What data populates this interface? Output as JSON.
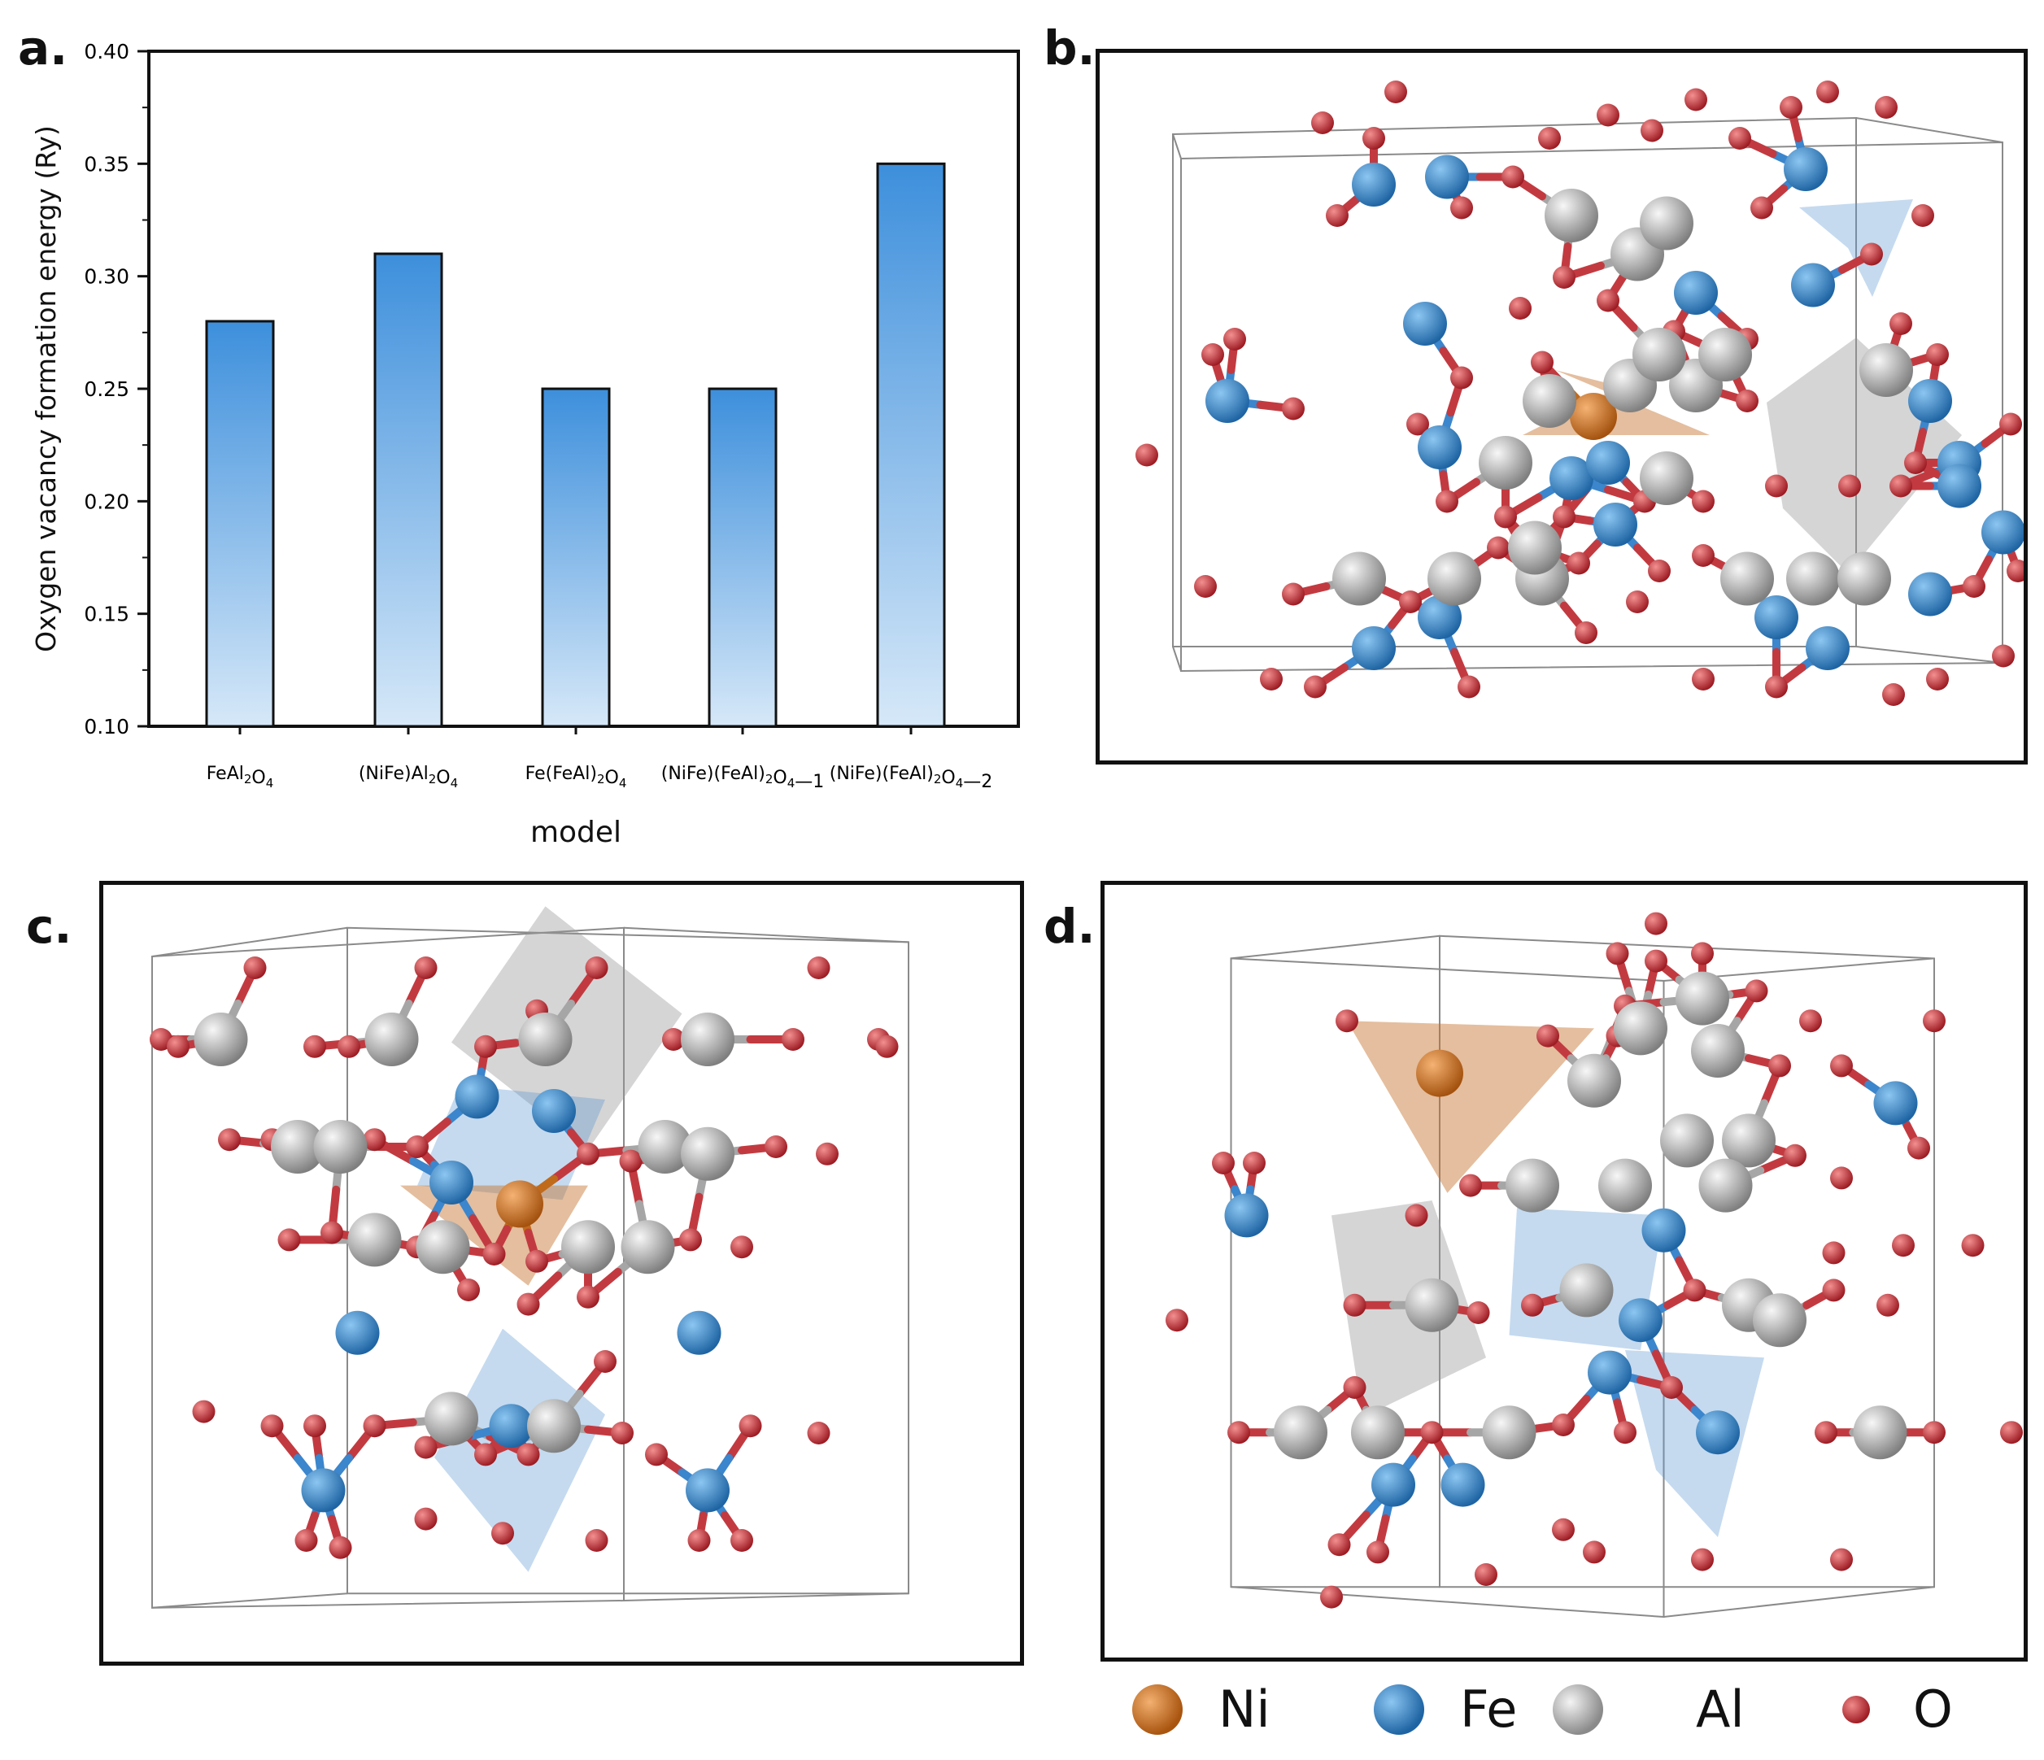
{
  "panels": {
    "a": "a.",
    "b": "b.",
    "c": "c.",
    "d": "d."
  },
  "chart_data": {
    "type": "bar",
    "categories": [
      {
        "main": "FeAl",
        "s1": "2",
        "mid": "O",
        "s2": "4",
        "tail": ""
      },
      {
        "main": "(NiFe)Al",
        "s1": "2",
        "mid": "O",
        "s2": "4",
        "tail": ""
      },
      {
        "main": "Fe(FeAl)",
        "s1": "2",
        "mid": "O",
        "s2": "4",
        "tail": ""
      },
      {
        "main": "(NiFe)(FeAl)",
        "s1": "2",
        "mid": "O",
        "s2": "4",
        "tail": "—1"
      },
      {
        "main": "(NiFe)(FeAl)",
        "s1": "2",
        "mid": "O",
        "s2": "4",
        "tail": "—2"
      }
    ],
    "values": [
      0.28,
      0.31,
      0.25,
      0.25,
      0.35
    ],
    "ylabel": "Oxygen vacancy formation energy (Ry)",
    "xlabel": "model",
    "ylim": [
      0.1,
      0.4
    ],
    "yticks": [
      "0.10",
      "0.15",
      "0.20",
      "0.25",
      "0.30",
      "0.35",
      "0.40"
    ],
    "bar_color_top": "#3d8fdc",
    "bar_color_bottom": "#d6e8f8"
  },
  "legend": [
    {
      "label": "Ni",
      "color": "#c06a1c"
    },
    {
      "label": "Fe",
      "color": "#2f7fc1"
    },
    {
      "label": "Al",
      "color": "#a9a9a9"
    },
    {
      "label": "O",
      "color": "#c4343a"
    }
  ]
}
